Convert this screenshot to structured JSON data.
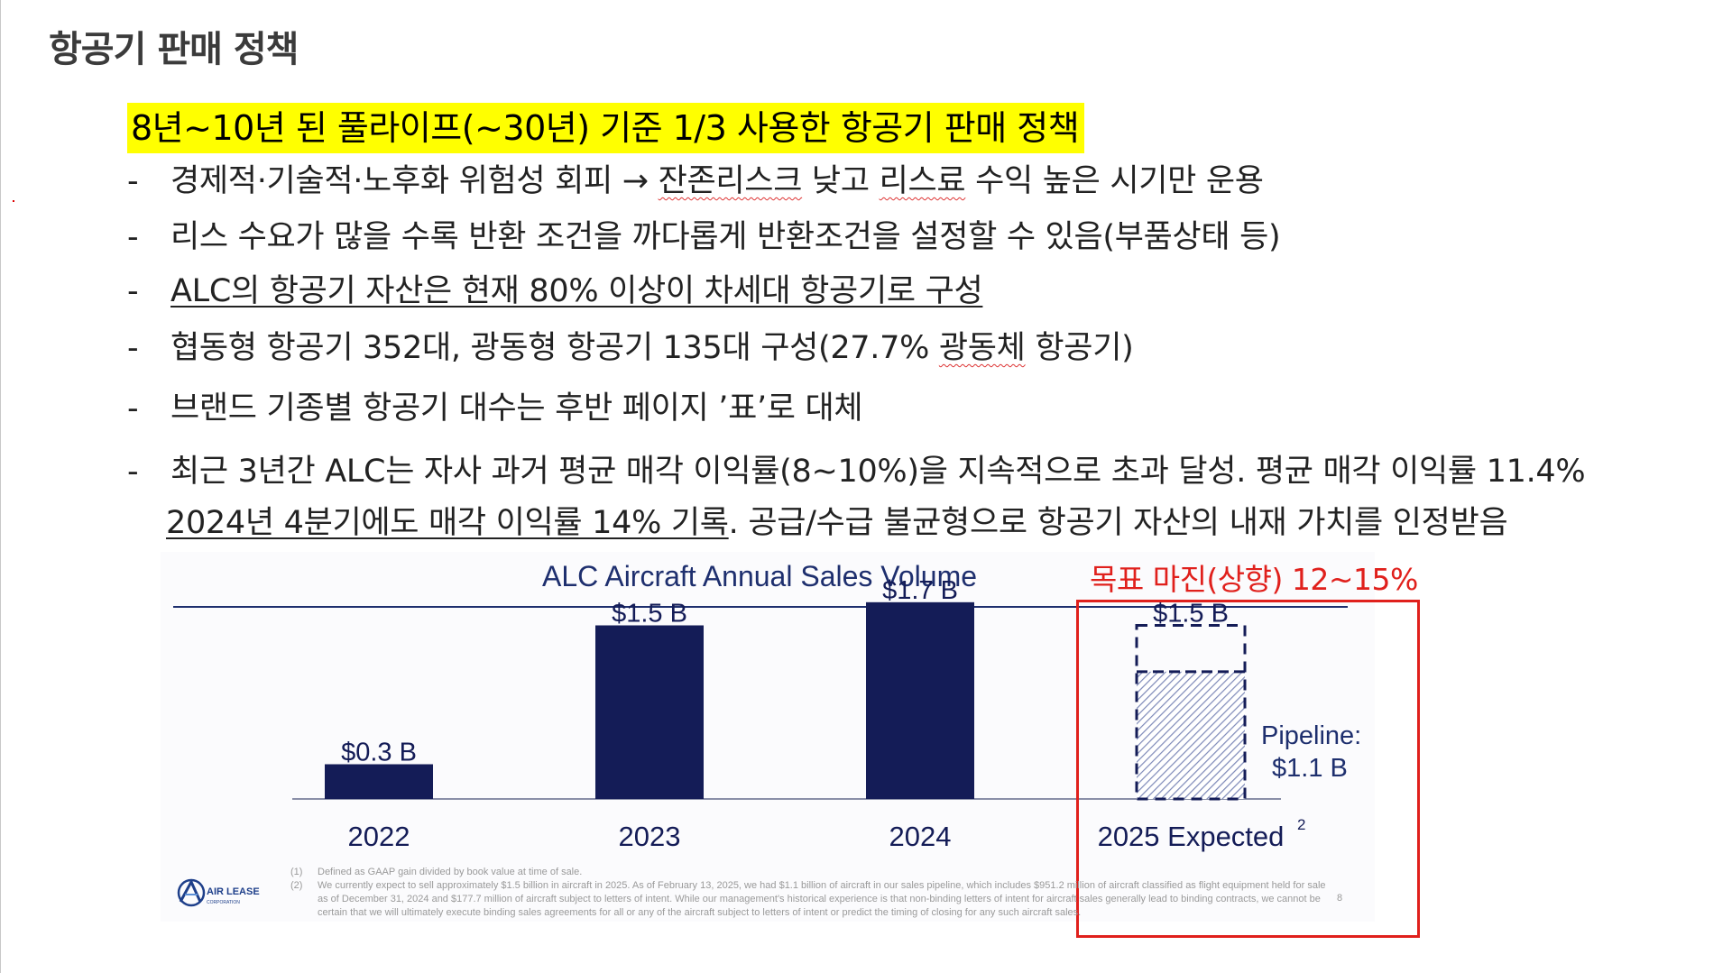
{
  "page": {
    "title": "항공기 판매 정책",
    "highlight": "8년~10년 된 풀라이프(~30년) 기준 1/3 사용한 항공기 판매 정책"
  },
  "bullets": [
    {
      "dash": "-",
      "text_a": "경제적·기술적·노후화 위험성 회피 → ",
      "text_b": "잔존리스크",
      "text_c": " 낮고 ",
      "text_d": "리스료",
      "text_e": " 수익 높은 시기만 운용"
    },
    {
      "dash": "-",
      "text": "리스 수요가 많을 수록 반환 조건을 까다롭게 반환조건을 설정할 수 있음(부품상태 등)"
    },
    {
      "dash": "-",
      "text": "ALC의 항공기 자산은 현재 80% 이상이 차세대 항공기로 구성"
    },
    {
      "dash": "-",
      "text_a": "협동형 항공기 352대, 광동형 항공기 135대 구성(27.7% ",
      "text_b": "광동체",
      "text_c": " 항공기)"
    },
    {
      "dash": "-",
      "text": "브랜드 기종별 항공기 대수는 후반 페이지 ’표’로 대체"
    },
    {
      "dash": "-",
      "text": "최근 3년간 ALC는 자사 과거 평균 매각 이익률(8~10%)을 지속적으로 초과 달성. 평균 매각 이익률 11.4%",
      "cont_a": "2024년 4분기에도 매각 이익률 14% 기록",
      "cont_b": ". 공급/수급 불균형으로 항공기 자산의 내재 가치를 인정받음"
    }
  ],
  "annotation": {
    "label": "목표 마진(상향) 12~15%",
    "color": "#e0201c"
  },
  "chart_data": {
    "type": "bar",
    "title": "ALC Aircraft Annual Sales Volume",
    "categories": [
      "2022",
      "2023",
      "2024",
      "2025 Expected"
    ],
    "category_superscripts": [
      "",
      "",
      "",
      "2"
    ],
    "values": [
      0.3,
      1.5,
      1.7,
      1.5
    ],
    "value_labels": [
      "$0.3 B",
      "$1.5 B",
      "$1.7 B",
      "$1.5 B"
    ],
    "unit": "$B",
    "expected_index": 3,
    "pipeline": {
      "value": 1.1,
      "label_line1": "Pipeline:",
      "label_line2": "$1.1 B"
    },
    "ylim": [
      0,
      1.8
    ],
    "grid": false,
    "colors": {
      "bar": "#141c57",
      "title": "#1e2f6e",
      "rule": "#1e2f6e",
      "hatch": "#7d89b8"
    }
  },
  "footnotes": [
    {
      "num": "(1)",
      "text": "Defined as GAAP gain divided by book value at time of sale."
    },
    {
      "num": "(2)",
      "text": "We currently expect to sell approximately $1.5 billion in aircraft in 2025. As of February 13, 2025, we had $1.1 billion of aircraft in our sales pipeline, which includes $951.2 million of aircraft classified as flight equipment held for sale as of December 31, 2024 and $177.7 million of aircraft subject to letters of intent. While our management's historical experience is that non-binding letters of intent for aircraft sales generally lead to binding contracts, we cannot be certain that we will ultimately execute binding sales agreements for all or any of the aircraft subject to letters of intent or predict the timing of closing for any such aircraft sales."
    }
  ],
  "logo": {
    "line1": "AIR LEASE",
    "line2": "CORPORATION"
  },
  "page_number": "8"
}
